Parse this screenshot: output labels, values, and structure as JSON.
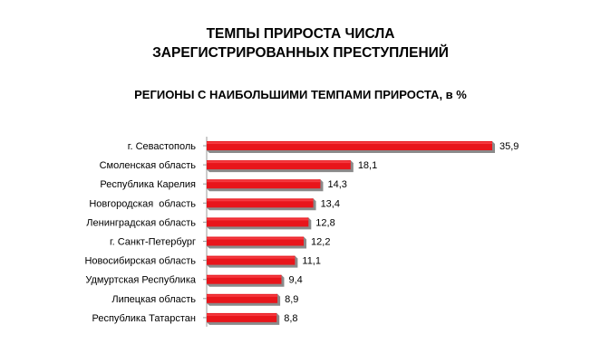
{
  "chart_data": {
    "type": "bar",
    "orientation": "horizontal",
    "title_lines": [
      "ТЕМПЫ ПРИРОСТА ЧИСЛА",
      "ЗАРЕГИСТРИРОВАННЫХ ПРЕСТУПЛЕНИЙ"
    ],
    "subtitle": "РЕГИОНЫ С НАИБОЛЬШИМИ ТЕМПАМИ ПРИРОСТА, в %",
    "categories": [
      "г. Севастополь",
      "Смоленская область",
      "Республика Карелия",
      "Новгородская  область",
      "Ленинградская область",
      "г. Санкт-Петербург",
      "Новосибирская область",
      "Удмуртская Республика",
      "Липецкая область",
      "Республика Татарстан"
    ],
    "values": [
      35.9,
      18.1,
      14.3,
      13.4,
      12.8,
      12.2,
      11.1,
      9.4,
      8.9,
      8.8
    ],
    "value_labels": [
      "35,9",
      "18,1",
      "14,3",
      "13,4",
      "12,8",
      "12,2",
      "11,1",
      "9,4",
      "8,9",
      "8,8"
    ],
    "xlim": [
      0,
      35.9
    ],
    "grid": false,
    "legend": "none",
    "bar_color": "#e8151b",
    "bar_shadow_color": "#8a8a8a"
  }
}
